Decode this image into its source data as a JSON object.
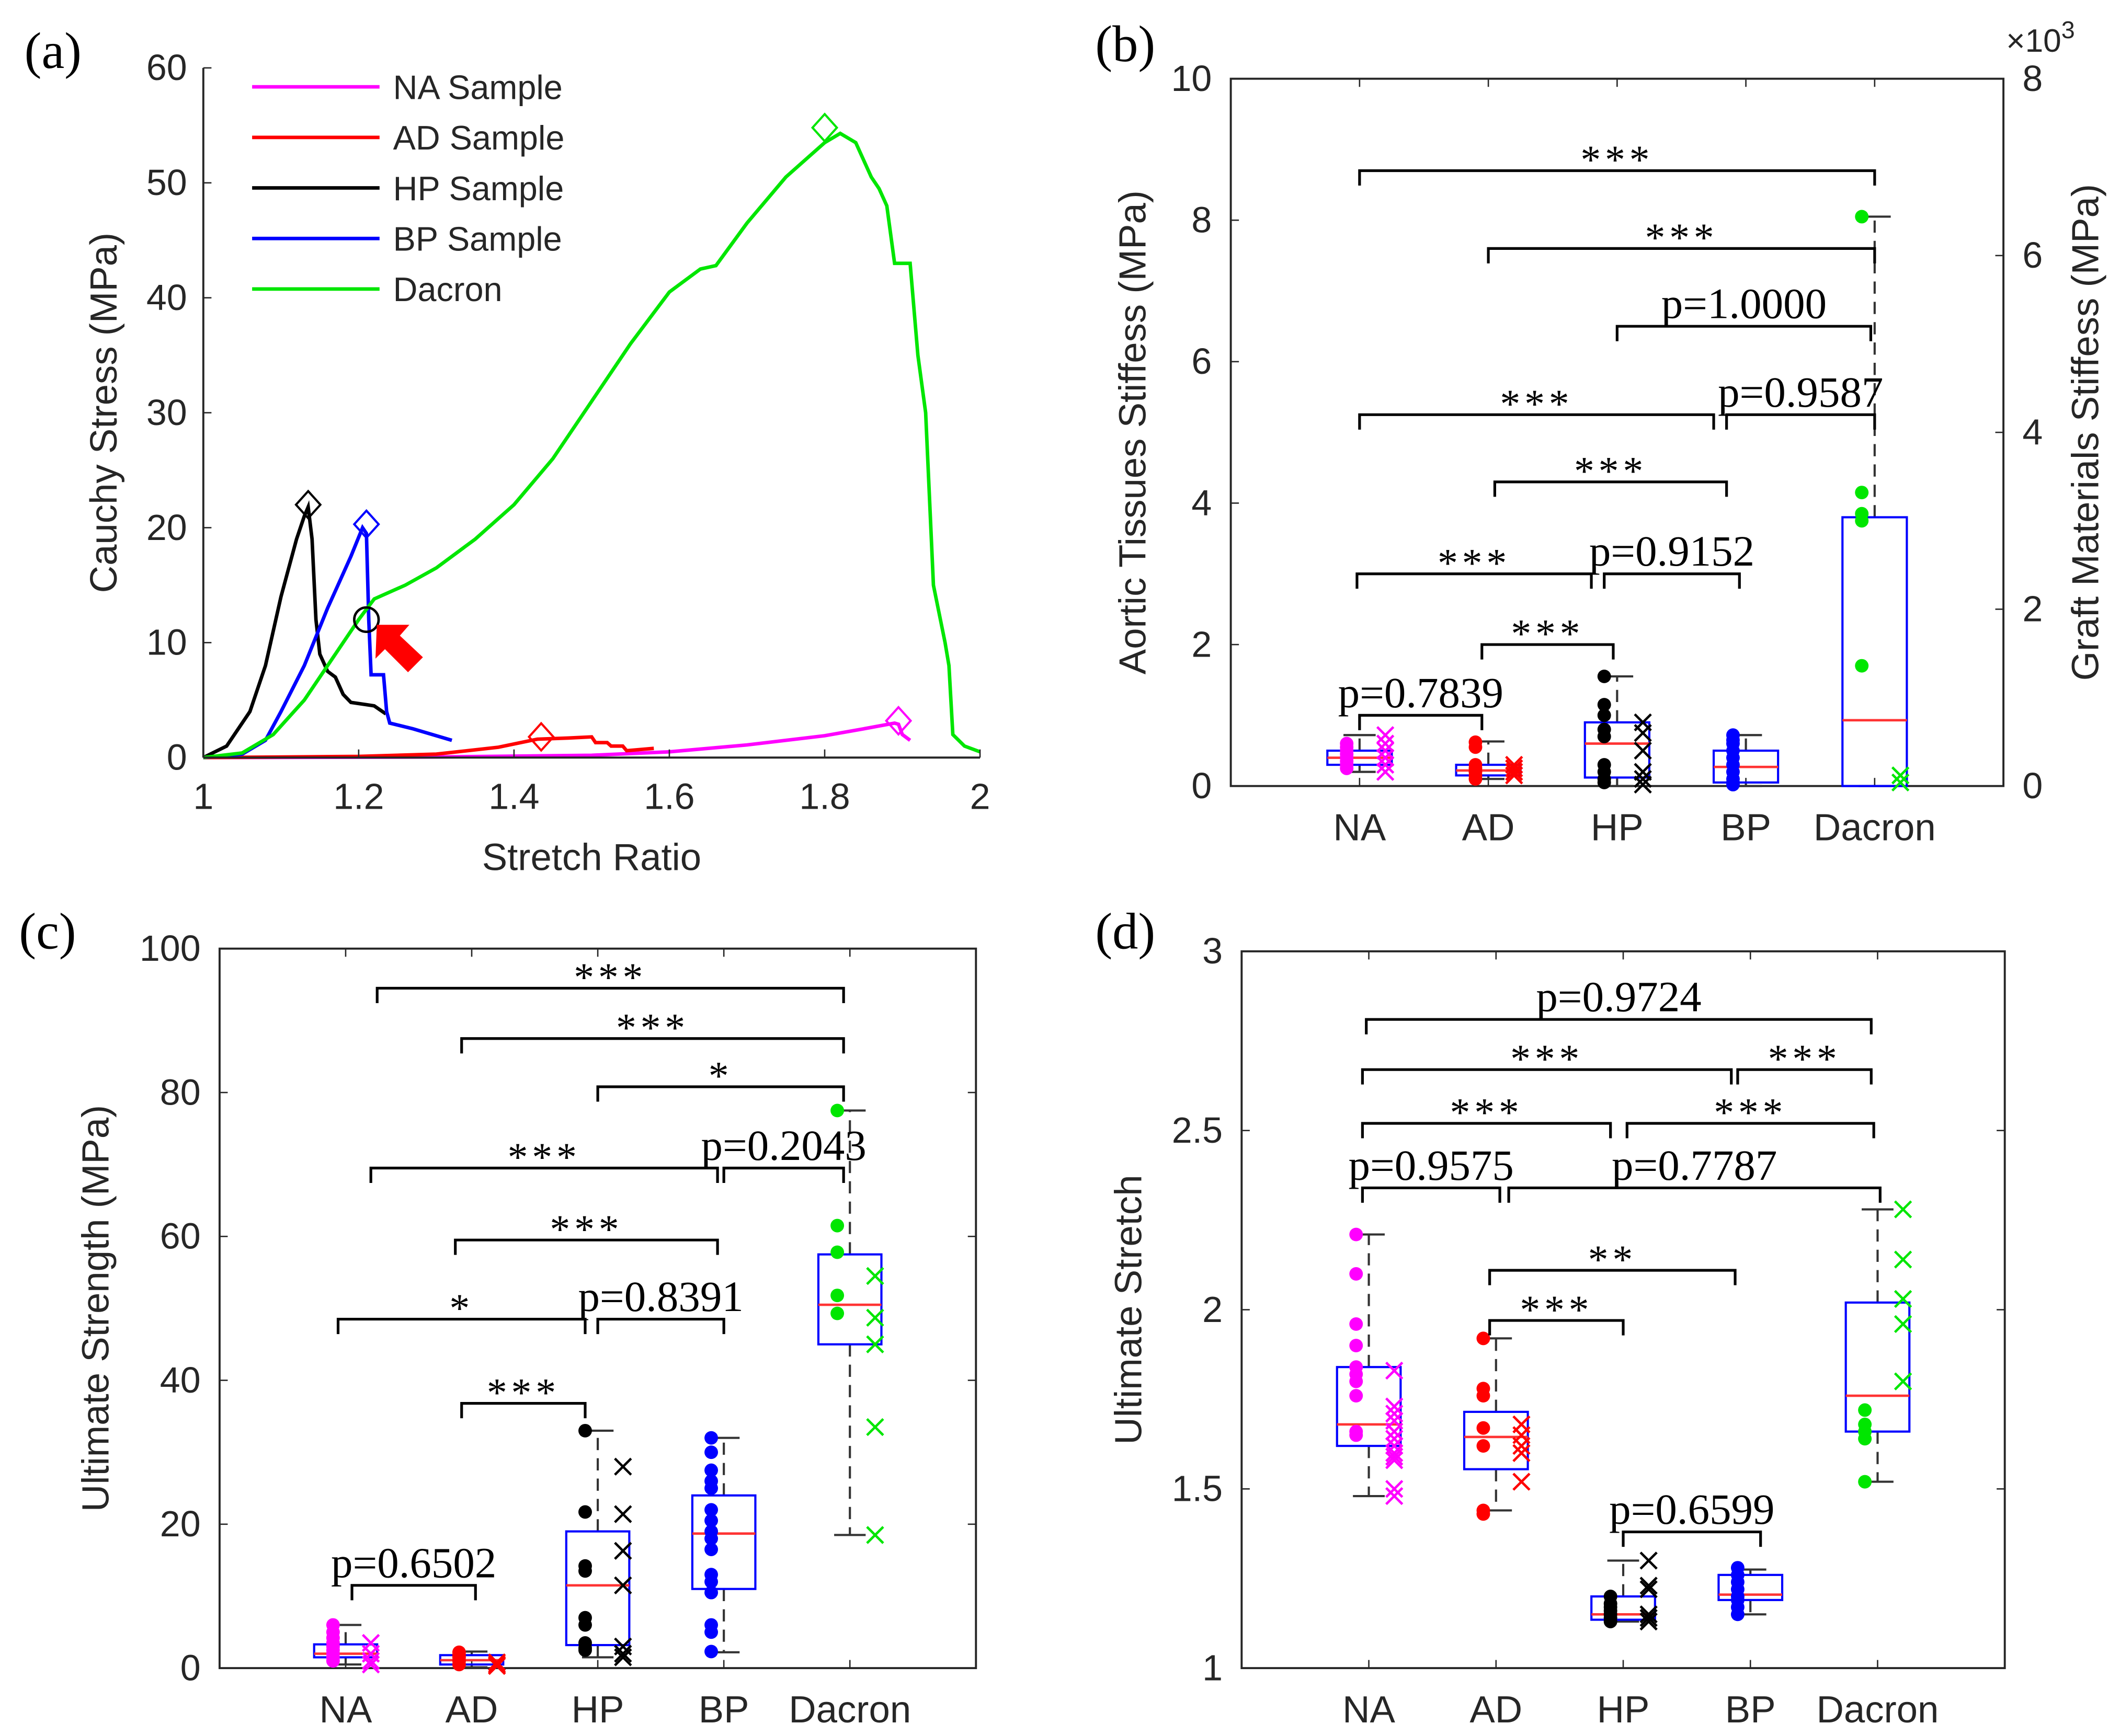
{
  "categories": [
    "NA",
    "AD",
    "HP",
    "BP",
    "Dacron"
  ],
  "colors": {
    "NA": "#ff00ff",
    "AD": "#ff0000",
    "HP": "#000000",
    "BP": "#0000ff",
    "Dacron": "#00e600",
    "box": "#0000ff",
    "median": "#ff3333",
    "arrow": "#ff0000"
  },
  "chart_data": [
    {
      "panel_label": "(a)",
      "type": "line",
      "xlabel": "Stretch Ratio",
      "ylabel": "Cauchy Stress (MPa)",
      "xlim": [
        1,
        2
      ],
      "ylim": [
        0,
        60
      ],
      "xticks": [
        1,
        1.2,
        1.4,
        1.6,
        1.8,
        2
      ],
      "yticks": [
        0,
        10,
        20,
        30,
        40,
        50,
        60
      ],
      "legend_position": "top-left",
      "series": [
        {
          "name": "NA Sample",
          "color": "#ff00ff",
          "points": [
            [
              1,
              0
            ],
            [
              1.3,
              0.05
            ],
            [
              1.5,
              0.2
            ],
            [
              1.6,
              0.5
            ],
            [
              1.7,
              1.1
            ],
            [
              1.8,
              1.9
            ],
            [
              1.85,
              2.5
            ],
            [
              1.89,
              3.0
            ],
            [
              1.895,
              2.9
            ],
            [
              1.9,
              2.0
            ],
            [
              1.91,
              1.5
            ]
          ],
          "peak": [
            1.895,
            3.2
          ]
        },
        {
          "name": "AD Sample",
          "color": "#ff0000",
          "points": [
            [
              1,
              0
            ],
            [
              1.2,
              0.1
            ],
            [
              1.3,
              0.3
            ],
            [
              1.38,
              0.9
            ],
            [
              1.43,
              1.6
            ],
            [
              1.47,
              1.7
            ],
            [
              1.5,
              1.8
            ],
            [
              1.505,
              1.3
            ],
            [
              1.52,
              1.3
            ],
            [
              1.525,
              1.0
            ],
            [
              1.54,
              1.0
            ],
            [
              1.545,
              0.6
            ],
            [
              1.58,
              0.8
            ]
          ],
          "peak": [
            1.435,
            1.8
          ]
        },
        {
          "name": "HP Sample",
          "color": "#000000",
          "points": [
            [
              1,
              0
            ],
            [
              1.03,
              1
            ],
            [
              1.06,
              4
            ],
            [
              1.08,
              8
            ],
            [
              1.1,
              14
            ],
            [
              1.12,
              19
            ],
            [
              1.13,
              21
            ],
            [
              1.135,
              21.8
            ],
            [
              1.14,
              19
            ],
            [
              1.145,
              12
            ],
            [
              1.15,
              9
            ],
            [
              1.16,
              7.5
            ],
            [
              1.17,
              7
            ],
            [
              1.18,
              5.5
            ],
            [
              1.19,
              4.8
            ],
            [
              1.21,
              4.6
            ],
            [
              1.22,
              4.5
            ],
            [
              1.235,
              3.8
            ]
          ],
          "peak": [
            1.135,
            22
          ]
        },
        {
          "name": "BP Sample",
          "color": "#0000ff",
          "points": [
            [
              1,
              0
            ],
            [
              1.05,
              0.3
            ],
            [
              1.08,
              1.5
            ],
            [
              1.1,
              4
            ],
            [
              1.13,
              8
            ],
            [
              1.16,
              13
            ],
            [
              1.19,
              17.5
            ],
            [
              1.205,
              20
            ],
            [
              1.21,
              19.5
            ],
            [
              1.213,
              12
            ],
            [
              1.216,
              7.2
            ],
            [
              1.232,
              7.2
            ],
            [
              1.236,
              4
            ],
            [
              1.24,
              3
            ],
            [
              1.27,
              2.5
            ],
            [
              1.32,
              1.5
            ]
          ],
          "peak": [
            1.21,
            20.3
          ]
        },
        {
          "name": "Dacron",
          "color": "#00e600",
          "points": [
            [
              1,
              0
            ],
            [
              1.05,
              0.4
            ],
            [
              1.09,
              2
            ],
            [
              1.13,
              5
            ],
            [
              1.17,
              9
            ],
            [
              1.2,
              12
            ],
            [
              1.22,
              13.8
            ],
            [
              1.26,
              15
            ],
            [
              1.3,
              16.5
            ],
            [
              1.35,
              19
            ],
            [
              1.4,
              22
            ],
            [
              1.45,
              26
            ],
            [
              1.5,
              31
            ],
            [
              1.55,
              36
            ],
            [
              1.6,
              40.5
            ],
            [
              1.64,
              42.5
            ],
            [
              1.66,
              42.8
            ],
            [
              1.7,
              46.5
            ],
            [
              1.75,
              50.5
            ],
            [
              1.8,
              53.5
            ],
            [
              1.82,
              54.3
            ],
            [
              1.84,
              53.5
            ],
            [
              1.86,
              50.5
            ],
            [
              1.87,
              49.5
            ],
            [
              1.88,
              48
            ],
            [
              1.89,
              43
            ],
            [
              1.91,
              43
            ],
            [
              1.92,
              35
            ],
            [
              1.93,
              30
            ],
            [
              1.94,
              15
            ],
            [
              1.955,
              10
            ],
            [
              1.96,
              8
            ],
            [
              1.965,
              2
            ],
            [
              1.98,
              1
            ],
            [
              2,
              0.5
            ]
          ],
          "peak": [
            1.8,
            54.8
          ]
        }
      ],
      "annotations": [
        {
          "type": "circle",
          "x": 1.21,
          "y": 12
        },
        {
          "type": "arrow",
          "x": 1.24,
          "y": 10,
          "direction": "up-left"
        }
      ]
    },
    {
      "panel_label": "(b)",
      "type": "box",
      "ylabel": "Aortic Tissues Stiffess (MPa)",
      "ylabel_right": "Graft Materials Stiffess (MPa)",
      "right_axis_multiplier_base": "×10",
      "right_axis_multiplier_exp": "3",
      "ylim": [
        0,
        10
      ],
      "yticks": [
        0,
        2,
        4,
        6,
        8,
        10
      ],
      "ylim_right": [
        0,
        8
      ],
      "yticks_right": [
        0,
        2,
        4,
        6,
        8
      ],
      "boxes": [
        {
          "cat": "NA",
          "q1": 0.3,
          "median": 0.4,
          "q3": 0.5,
          "min": 0.2,
          "max": 0.72,
          "dots": [
            0.6,
            0.55,
            0.5,
            0.45,
            0.4,
            0.35,
            0.3,
            0.25
          ],
          "crosses": [
            0.72,
            0.6,
            0.5,
            0.4,
            0.3,
            0.2
          ]
        },
        {
          "cat": "AD",
          "q1": 0.15,
          "median": 0.22,
          "q3": 0.3,
          "min": 0.1,
          "max": 0.63,
          "dots": [
            0.62,
            0.55,
            0.3,
            0.25,
            0.2,
            0.15,
            0.1
          ],
          "crosses": [
            0.3,
            0.25,
            0.2,
            0.15
          ]
        },
        {
          "cat": "HP",
          "q1": 0.12,
          "median": 0.6,
          "q3": 0.9,
          "min": 0.0,
          "max": 1.55,
          "dots": [
            1.55,
            1.15,
            1.0,
            0.8,
            0.7,
            0.3,
            0.2,
            0.1,
            0.05
          ],
          "crosses": [
            0.9,
            0.75,
            0.5,
            0.2,
            0.1,
            0.02
          ]
        },
        {
          "cat": "BP",
          "q1": 0.05,
          "median": 0.27,
          "q3": 0.5,
          "min": 0.0,
          "max": 0.72,
          "dots": [
            0.72,
            0.65,
            0.6,
            0.5,
            0.4,
            0.3,
            0.2,
            0.1,
            0.05,
            0.02
          ],
          "crosses": []
        },
        {
          "cat": "Dacron",
          "q1": 0.0,
          "median": 0.93,
          "q3": 3.8,
          "min": 0.0,
          "max": 8.05,
          "dots": [
            8.05,
            4.15,
            3.85,
            3.75,
            1.7
          ],
          "crosses": [
            0.15,
            0.05
          ]
        }
      ],
      "brackets": [
        {
          "from": 1,
          "to": 5,
          "y": 8.7,
          "label": "***"
        },
        {
          "from": 2,
          "to": 5,
          "y": 7.6,
          "label": "***"
        },
        {
          "from": 3,
          "to": 4.97,
          "y": 6.5,
          "label": "p=1.0000"
        },
        {
          "from": 1,
          "to": 3.75,
          "y": 5.25,
          "label": "***"
        },
        {
          "from": 3.85,
          "to": 5,
          "y": 5.25,
          "label": "p=0.9587"
        },
        {
          "from": 2.05,
          "to": 3.85,
          "y": 4.3,
          "label": "***"
        },
        {
          "from": 0.98,
          "to": 2.8,
          "y": 3.0,
          "label": "***"
        },
        {
          "from": 2.9,
          "to": 3.95,
          "y": 3.0,
          "label": "p=0.9152"
        },
        {
          "from": 1.95,
          "to": 2.97,
          "y": 2.0,
          "label": "***"
        },
        {
          "from": 1.0,
          "to": 1.95,
          "y": 1.0,
          "label": "p=0.7839"
        }
      ]
    },
    {
      "panel_label": "(c)",
      "type": "box",
      "ylabel": "Ultimate Strength (MPa)",
      "ylim": [
        0,
        100
      ],
      "yticks": [
        0,
        20,
        40,
        60,
        80,
        100
      ],
      "boxes": [
        {
          "cat": "NA",
          "q1": 1.5,
          "median": 2.0,
          "q3": 3.3,
          "min": 0.5,
          "max": 6.0,
          "dots": [
            6,
            5,
            4.2,
            3.5,
            3,
            2.5,
            2,
            1.5,
            1
          ],
          "crosses": [
            3.5,
            2,
            1,
            0.5
          ]
        },
        {
          "cat": "AD",
          "q1": 0.5,
          "median": 1.1,
          "q3": 1.8,
          "min": 0.1,
          "max": 2.3,
          "dots": [
            2.2,
            1.8,
            1.5,
            1,
            0.5
          ],
          "crosses": [
            0.8,
            0.5,
            0.3
          ]
        },
        {
          "cat": "HP",
          "q1": 3.2,
          "median": 11.5,
          "q3": 19.0,
          "min": 1.5,
          "max": 33.0,
          "dots": [
            33,
            21.7,
            14.2,
            13.5,
            7,
            6,
            3.5,
            2.8,
            2.5
          ],
          "crosses": [
            28,
            21.4,
            16.3,
            11.5,
            3,
            2,
            1.5
          ]
        },
        {
          "cat": "BP",
          "q1": 11.0,
          "median": 18.7,
          "q3": 24.0,
          "min": 2.2,
          "max": 32.0,
          "dots": [
            32,
            30,
            27.5,
            26,
            25,
            22,
            20.5,
            19,
            18,
            16.5,
            13,
            12,
            10.5,
            6,
            5,
            2.3
          ],
          "crosses": []
        },
        {
          "cat": "Dacron",
          "q1": 45.0,
          "median": 50.5,
          "q3": 57.5,
          "min": 18.5,
          "max": 77.5,
          "dots": [
            77.5,
            61.5,
            57.8,
            51.8,
            49.3
          ],
          "crosses": [
            54.5,
            48.7,
            45,
            33.5,
            18.5
          ]
        }
      ],
      "brackets": [
        {
          "from": 1.25,
          "to": 4.95,
          "y": 94.5,
          "label": "***"
        },
        {
          "from": 1.92,
          "to": 4.95,
          "y": 87.5,
          "label": "***"
        },
        {
          "from": 3.0,
          "to": 4.95,
          "y": 80.8,
          "label": "*"
        },
        {
          "from": 1.2,
          "to": 3.95,
          "y": 69.5,
          "label": "***"
        },
        {
          "from": 4.0,
          "to": 4.95,
          "y": 69.5,
          "label": "p=0.2043"
        },
        {
          "from": 1.87,
          "to": 3.95,
          "y": 59.5,
          "label": "***"
        },
        {
          "from": 0.94,
          "to": 2.9,
          "y": 48.5,
          "label": "*"
        },
        {
          "from": 3.0,
          "to": 4.0,
          "y": 48.5,
          "label": "p=0.8391"
        },
        {
          "from": 1.92,
          "to": 2.9,
          "y": 36.8,
          "label": "***"
        },
        {
          "from": 1.05,
          "to": 2.03,
          "y": 11.5,
          "label": "p=0.6502"
        }
      ]
    },
    {
      "panel_label": "(d)",
      "type": "box",
      "ylabel": "Ultimate Stretch",
      "ylim": [
        1,
        3
      ],
      "yticks": [
        1,
        1.5,
        2,
        2.5,
        3
      ],
      "boxes": [
        {
          "cat": "NA",
          "q1": 1.62,
          "median": 1.68,
          "q3": 1.84,
          "min": 1.48,
          "max": 2.21,
          "dots": [
            2.21,
            2.1,
            1.96,
            1.9,
            1.84,
            1.82,
            1.8,
            1.76,
            1.66,
            1.65
          ],
          "crosses": [
            1.83,
            1.73,
            1.71,
            1.69,
            1.66,
            1.64,
            1.62,
            1.6,
            1.59,
            1.58,
            1.5,
            1.48
          ]
        },
        {
          "cat": "AD",
          "q1": 1.555,
          "median": 1.645,
          "q3": 1.715,
          "min": 1.44,
          "max": 1.92,
          "dots": [
            1.92,
            1.78,
            1.76,
            1.67,
            1.62,
            1.44,
            1.43
          ],
          "crosses": [
            1.68,
            1.65,
            1.62,
            1.6,
            1.52
          ]
        },
        {
          "cat": "HP",
          "q1": 1.135,
          "median": 1.15,
          "q3": 1.2,
          "min": 1.13,
          "max": 1.3,
          "dots": [
            1.2,
            1.18,
            1.17,
            1.16,
            1.15,
            1.14,
            1.13
          ],
          "crosses": [
            1.3,
            1.23,
            1.22,
            1.15,
            1.14,
            1.13
          ]
        },
        {
          "cat": "BP",
          "q1": 1.19,
          "median": 1.205,
          "q3": 1.26,
          "min": 1.15,
          "max": 1.275,
          "dots": [
            1.28,
            1.26,
            1.24,
            1.22,
            1.2,
            1.19,
            1.17,
            1.15
          ],
          "crosses": []
        },
        {
          "cat": "Dacron",
          "q1": 1.66,
          "median": 1.76,
          "q3": 2.02,
          "min": 1.52,
          "max": 2.28,
          "dots": [
            1.72,
            1.68,
            1.66,
            1.64,
            1.52
          ],
          "crosses": [
            2.28,
            2.14,
            2.03,
            1.96,
            1.8
          ]
        }
      ],
      "brackets": [
        {
          "from": 0.98,
          "to": 4.95,
          "y": 2.81,
          "label": "p=0.9724"
        },
        {
          "from": 0.95,
          "to": 3.85,
          "y": 2.67,
          "label": "***"
        },
        {
          "from": 3.9,
          "to": 4.95,
          "y": 2.67,
          "label": "***"
        },
        {
          "from": 0.95,
          "to": 2.9,
          "y": 2.52,
          "label": "***"
        },
        {
          "from": 3.03,
          "to": 4.97,
          "y": 2.52,
          "label": "***"
        },
        {
          "from": 0.95,
          "to": 2.03,
          "y": 2.34,
          "label": "p=0.9575"
        },
        {
          "from": 2.1,
          "to": 5.02,
          "y": 2.34,
          "label": "p=0.7787"
        },
        {
          "from": 1.95,
          "to": 3.88,
          "y": 2.11,
          "label": "**"
        },
        {
          "from": 1.95,
          "to": 3.0,
          "y": 1.97,
          "label": "***"
        },
        {
          "from": 3.0,
          "to": 4.08,
          "y": 1.38,
          "label": "p=0.6599"
        }
      ]
    }
  ]
}
